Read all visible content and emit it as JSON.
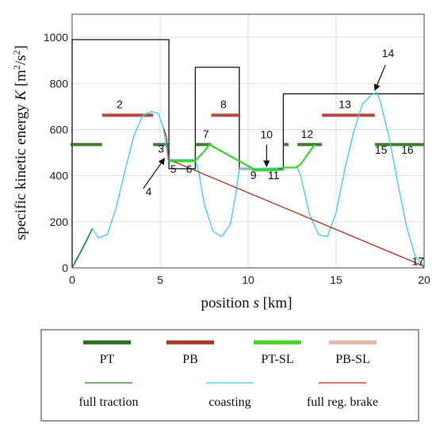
{
  "chart_data": {
    "type": "line",
    "xlabel_prefix": "position ",
    "xlabel_var": "s",
    "xlabel_unit": " [km]",
    "ylabel_prefix": "specific kinetic energy ",
    "ylabel_var": "K",
    "ylabel_unit_open": " [m",
    "ylabel_unit_sup1": "2",
    "ylabel_unit_mid": "/s",
    "ylabel_unit_sup2": "2",
    "ylabel_unit_close": "]",
    "xlim": [
      0,
      20
    ],
    "ylim": [
      0,
      1100
    ],
    "xticks": [
      0,
      5,
      10,
      15,
      20
    ],
    "yticks": [
      0,
      200,
      400,
      600,
      800,
      1000
    ],
    "grid": true,
    "speed_limit_profile": {
      "x": [
        0,
        0,
        5.5,
        5.5,
        7,
        7,
        9.5,
        9.5,
        12,
        12,
        20
      ],
      "y": [
        0,
        990,
        990,
        430,
        430,
        870,
        870,
        430,
        430,
        755,
        755
      ]
    },
    "series": [
      {
        "name": "coasting",
        "color": "#3fc8ec",
        "x": [
          0.1,
          0.5,
          1.0,
          1.15,
          1.5,
          2.0,
          2.5,
          3.0,
          3.5,
          4.0,
          4.5,
          4.9,
          5.2,
          5.45,
          7.0,
          7.2,
          7.5,
          8.0,
          8.5,
          9.0,
          9.3,
          9.5,
          12.8,
          13.0,
          13.5,
          14.0,
          14.5,
          15.0,
          15.5,
          16.0,
          16.5,
          17.0,
          17.3,
          17.5,
          18.0,
          18.5,
          19.0,
          19.5,
          20.0
        ],
        "y": [
          20,
          75,
          150,
          170,
          130,
          145,
          260,
          420,
          570,
          660,
          678,
          670,
          605,
          470,
          468,
          415,
          280,
          160,
          135,
          190,
          320,
          430,
          435,
          395,
          230,
          145,
          135,
          240,
          430,
          590,
          710,
          750,
          760,
          725,
          570,
          370,
          180,
          50,
          5
        ]
      },
      {
        "name": "full traction",
        "color": "#2c7a22",
        "x": [
          0.0,
          0.15,
          0.5,
          0.9,
          1.15
        ],
        "y": [
          0,
          20,
          70,
          130,
          170
        ]
      },
      {
        "name": "full reg. brake",
        "color": "#b03020",
        "x": [
          5.2,
          5.35,
          5.5,
          19.9,
          20.0
        ],
        "y": [
          605,
          570,
          470,
          10,
          0
        ]
      },
      {
        "name": "PT-SL",
        "color": "#3bd12e",
        "x": [
          5.5,
          7.0,
          7.0,
          7.5,
          7.8,
          10.4,
          11.6,
          12.0,
          12.0,
          12.7,
          13.0,
          13.5,
          13.8
        ],
        "y": [
          465,
          465,
          465,
          505,
          535,
          425,
          425,
          425,
          435,
          435,
          450,
          505,
          535
        ]
      }
    ],
    "segments": [
      {
        "id": "PT",
        "type": "PT",
        "x": [
          -0.1,
          1.7
        ],
        "y": 535
      },
      {
        "id": "2",
        "type": "PB",
        "x": [
          1.7,
          4.6
        ],
        "y": 662
      },
      {
        "id": "PT",
        "type": "PT",
        "x": [
          4.6,
          5.5
        ],
        "y": 535
      },
      {
        "id": "5-6",
        "type": "PT-SL",
        "x": [
          5.5,
          7.0
        ],
        "y": 465
      },
      {
        "id": "7",
        "type": "PT",
        "x": [
          7.0,
          7.9
        ],
        "y": 535
      },
      {
        "id": "8",
        "type": "PB",
        "x": [
          7.9,
          9.5
        ],
        "y": 662
      },
      {
        "id": "9",
        "type": "PB-SL",
        "x": [
          9.5,
          10.2
        ],
        "y": 430
      },
      {
        "id": "10-11",
        "type": "PT-SL",
        "x": [
          10.2,
          11.7
        ],
        "y": 425
      },
      {
        "id": "PT",
        "type": "PT",
        "x": [
          12.0,
          12.3
        ],
        "y": 535
      },
      {
        "id": "12",
        "type": "PT",
        "x": [
          12.8,
          14.2
        ],
        "y": 535
      },
      {
        "id": "13",
        "type": "PB",
        "x": [
          14.2,
          17.2
        ],
        "y": 662
      },
      {
        "id": "15",
        "type": "PT",
        "x": [
          17.2,
          18.6
        ],
        "y": 535
      },
      {
        "id": "16",
        "type": "PT",
        "x": [
          18.6,
          20.0
        ],
        "y": 535
      }
    ],
    "annotations": [
      {
        "text": "2",
        "x": 2.7,
        "y": 693
      },
      {
        "text": "3",
        "x": 5.05,
        "y": 500
      },
      {
        "text": "4",
        "x": 4.35,
        "y": 315
      },
      {
        "text": "5",
        "x": 5.75,
        "y": 413
      },
      {
        "text": "6",
        "x": 6.65,
        "y": 413
      },
      {
        "text": "7",
        "x": 7.6,
        "y": 564
      },
      {
        "text": "8",
        "x": 8.6,
        "y": 693
      },
      {
        "text": "9",
        "x": 10.3,
        "y": 385
      },
      {
        "text": "10",
        "x": 11.05,
        "y": 562
      },
      {
        "text": "11",
        "x": 11.45,
        "y": 385
      },
      {
        "text": "12",
        "x": 13.35,
        "y": 564
      },
      {
        "text": "13",
        "x": 15.5,
        "y": 693
      },
      {
        "text": "14",
        "x": 17.95,
        "y": 915
      },
      {
        "text": "15",
        "x": 17.55,
        "y": 495
      },
      {
        "text": "16",
        "x": 19.05,
        "y": 495
      },
      {
        "text": "17",
        "x": 19.65,
        "y": 12
      }
    ],
    "arrows": [
      {
        "from": [
          4.05,
          345
        ],
        "to": [
          5.25,
          475
        ]
      },
      {
        "from": [
          11.05,
          535
        ],
        "to": [
          11.05,
          440
        ]
      },
      {
        "from": [
          17.8,
          880
        ],
        "to": [
          17.2,
          770
        ]
      }
    ]
  },
  "legend": {
    "items": [
      {
        "label": "PT",
        "color": "#2c6e1c",
        "style": "thick"
      },
      {
        "label": "PB",
        "color": "#a83a2c",
        "style": "thick"
      },
      {
        "label": "PT-SL",
        "color": "#49d22a",
        "style": "thick"
      },
      {
        "label": "PB-SL",
        "color": "#e0b8b0",
        "style": "thick"
      },
      {
        "label": "full traction",
        "color": "#2c7a22",
        "style": "thin"
      },
      {
        "label": "coasting",
        "color": "#3fc8ec",
        "style": "thin"
      },
      {
        "label": "full reg. brake",
        "color": "#b03020",
        "style": "thin"
      }
    ]
  },
  "colors": {
    "PT": "#2c6e1c",
    "PB": "#a83a2c",
    "PT-SL": "#49d22a",
    "PB-SL": "#e0b8b0",
    "limit": "#111111",
    "grid": "#dcdcdc"
  }
}
